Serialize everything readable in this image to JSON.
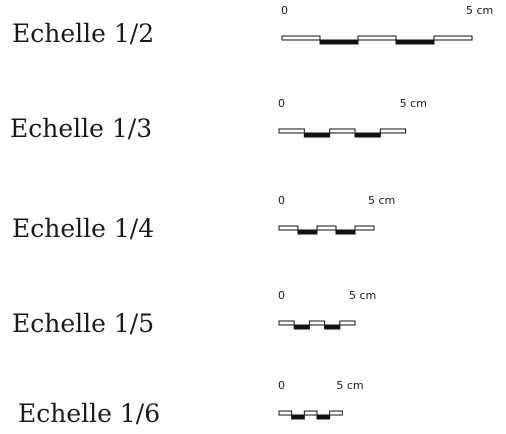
{
  "colors": {
    "text": "#1a1a1a",
    "bar_dark": "#111111",
    "bar_light": "#ffffff",
    "outline": "#111111"
  },
  "scales": [
    {
      "label": "Echelle 1/2",
      "denominator": 2,
      "start_label": "0",
      "end_label": "5 cm",
      "segments": 5
    },
    {
      "label": "Echelle 1/3",
      "denominator": 3,
      "start_label": "0",
      "end_label": "5 cm",
      "segments": 5
    },
    {
      "label": "Echelle 1/4",
      "denominator": 4,
      "start_label": "0",
      "end_label": "5 cm",
      "segments": 5
    },
    {
      "label": "Echelle 1/5",
      "denominator": 5,
      "start_label": "0",
      "end_label": "5 cm",
      "segments": 5
    },
    {
      "label": "Echelle 1/6",
      "denominator": 6,
      "start_label": "0",
      "end_label": "5 cm",
      "segments": 5
    }
  ]
}
